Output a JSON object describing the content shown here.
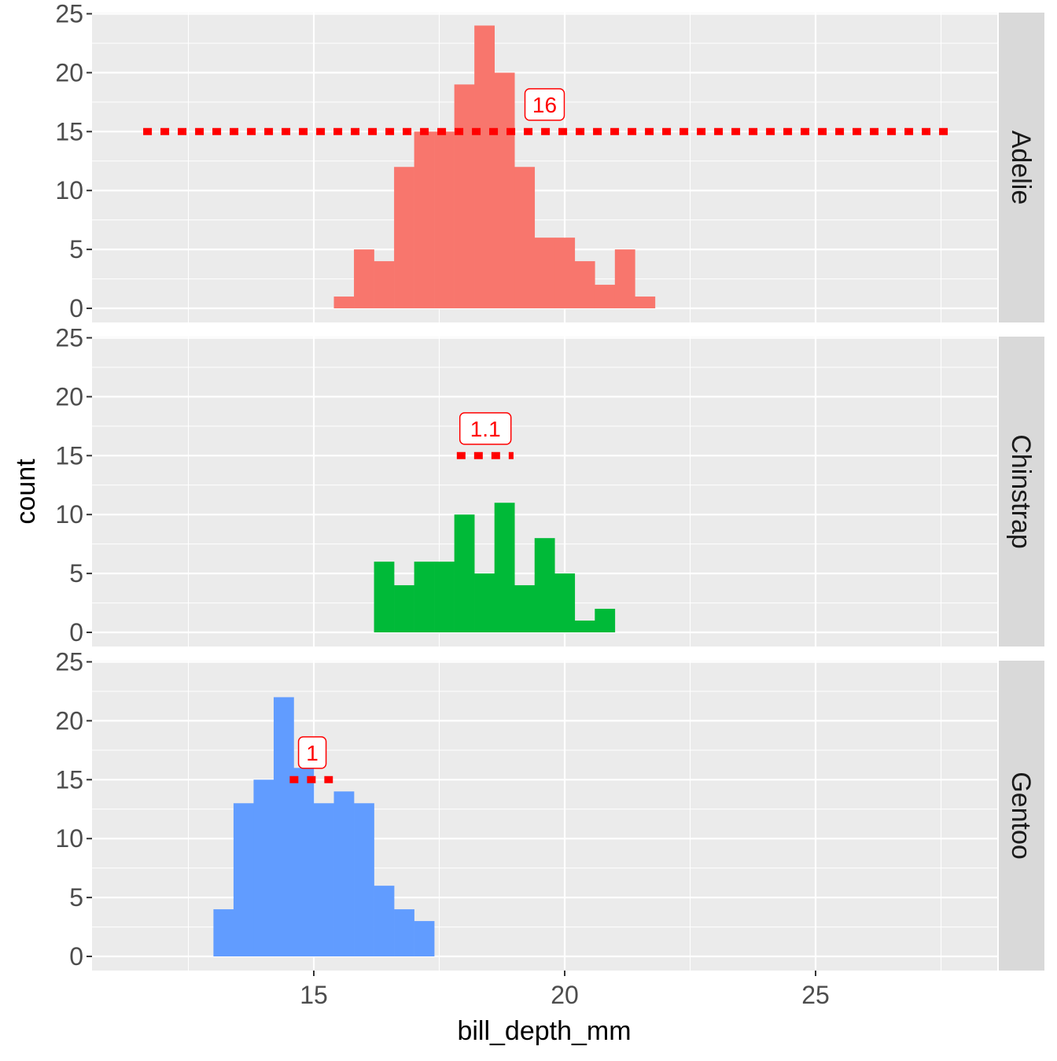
{
  "chart_data": {
    "type": "bar",
    "subtype": "faceted histogram",
    "xlabel": "bill_depth_mm",
    "ylabel": "count",
    "xlim": [
      10.58,
      28.62
    ],
    "ylim": [
      -1.2,
      25.1
    ],
    "x_ticks": [
      15,
      20,
      25
    ],
    "y_ticks": [
      0,
      5,
      10,
      15,
      20,
      25
    ],
    "grid": true,
    "bin_width": 0.4,
    "panels": [
      {
        "name": "Adelie",
        "color": "#F8766D",
        "bin_start": 15.4,
        "counts": [
          1,
          5,
          4,
          12,
          15,
          15,
          19,
          24,
          20,
          12,
          6,
          6,
          4,
          2,
          5,
          1
        ],
        "segment": {
          "x_start": 11.6,
          "x_end": 27.65,
          "y": 15,
          "color": "#FF0000"
        },
        "label": {
          "text": "16",
          "x": 19.6,
          "y": 17.3
        }
      },
      {
        "name": "Chinstrap",
        "color": "#00BA38",
        "bin_start": 16.2,
        "counts": [
          6,
          4,
          6,
          6,
          10,
          5,
          11,
          4,
          8,
          5,
          1,
          2
        ],
        "segment": {
          "x_start": 17.85,
          "x_end": 18.98,
          "y": 15,
          "color": "#FF0000"
        },
        "label": {
          "text": "1.1",
          "x": 18.42,
          "y": 17.3
        }
      },
      {
        "name": "Gentoo",
        "color": "#619CFF",
        "bin_start": 13.0,
        "counts": [
          4,
          13,
          15,
          22,
          16,
          13,
          14,
          13,
          6,
          4,
          3
        ],
        "segment": {
          "x_start": 14.52,
          "x_end": 15.38,
          "y": 15,
          "color": "#FF0000"
        },
        "label": {
          "text": "1",
          "x": 14.97,
          "y": 17.3
        }
      }
    ]
  }
}
